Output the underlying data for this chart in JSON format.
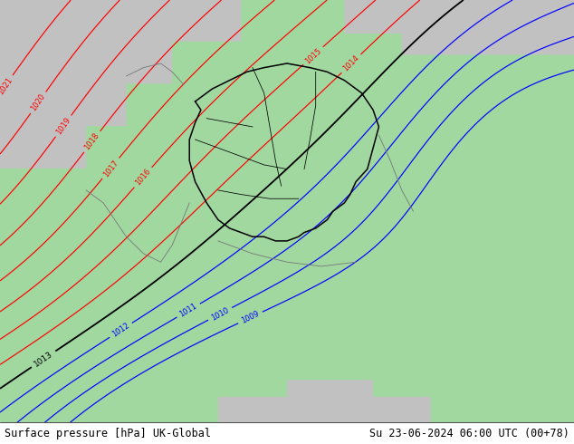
{
  "title_left": "Surface pressure [hPa] UK-Global",
  "title_right": "Su 23-06-2024 06:00 UTC (00+78)",
  "fig_width": 6.34,
  "fig_height": 4.9,
  "dpi": 100,
  "land_color": [
    0.63,
    0.85,
    0.63
  ],
  "sea_color": [
    0.76,
    0.76,
    0.76
  ],
  "font_family": "monospace",
  "font_size_bottom": 8.5
}
